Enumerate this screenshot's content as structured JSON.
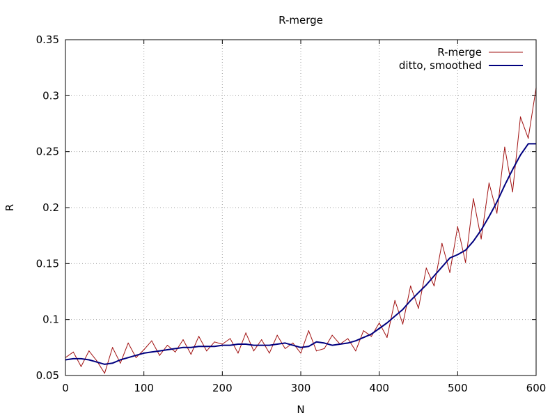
{
  "chart_data": {
    "type": "line",
    "title": "R-merge",
    "xlabel": "N",
    "ylabel": "R",
    "xlim": [
      0,
      600
    ],
    "ylim": [
      0.05,
      0.35
    ],
    "x_ticks": [
      "0",
      "100",
      "200",
      "300",
      "400",
      "500",
      "600"
    ],
    "y_ticks": [
      "0.05",
      "0.1",
      "0.15",
      "0.2",
      "0.25",
      "0.3",
      "0.35"
    ],
    "grid": true,
    "legend_position": "top-right",
    "series": [
      {
        "name": "R-merge",
        "color": "#a01010",
        "style": "thin-noisy",
        "x": [
          0,
          10,
          20,
          30,
          40,
          50,
          60,
          70,
          80,
          90,
          100,
          110,
          120,
          130,
          140,
          150,
          160,
          170,
          180,
          190,
          200,
          210,
          220,
          230,
          240,
          250,
          260,
          270,
          280,
          290,
          300,
          310,
          320,
          330,
          340,
          350,
          360,
          370,
          380,
          390,
          400,
          410,
          420,
          430,
          440,
          450,
          460,
          470,
          480,
          490,
          500,
          510,
          520,
          530,
          540,
          550,
          560,
          570,
          580,
          590,
          600
        ],
        "y": [
          0.066,
          0.071,
          0.058,
          0.072,
          0.063,
          0.052,
          0.075,
          0.061,
          0.079,
          0.066,
          0.073,
          0.081,
          0.068,
          0.077,
          0.071,
          0.082,
          0.069,
          0.085,
          0.072,
          0.08,
          0.078,
          0.083,
          0.07,
          0.088,
          0.072,
          0.082,
          0.07,
          0.086,
          0.074,
          0.079,
          0.07,
          0.09,
          0.072,
          0.074,
          0.086,
          0.078,
          0.083,
          0.072,
          0.09,
          0.085,
          0.097,
          0.084,
          0.117,
          0.096,
          0.13,
          0.11,
          0.146,
          0.13,
          0.168,
          0.142,
          0.183,
          0.151,
          0.208,
          0.172,
          0.222,
          0.195,
          0.254,
          0.214,
          0.281,
          0.262,
          0.307
        ]
      },
      {
        "name": "ditto, smoothed",
        "color": "#00007f",
        "style": "thick-smooth",
        "x": [
          0,
          10,
          20,
          30,
          40,
          50,
          60,
          70,
          80,
          90,
          100,
          110,
          120,
          130,
          140,
          150,
          160,
          170,
          180,
          190,
          200,
          210,
          220,
          230,
          240,
          250,
          260,
          270,
          280,
          290,
          300,
          310,
          320,
          330,
          340,
          350,
          360,
          370,
          380,
          390,
          400,
          410,
          420,
          430,
          440,
          450,
          460,
          470,
          480,
          490,
          500,
          510,
          520,
          530,
          540,
          550,
          560,
          570,
          580,
          590,
          600
        ],
        "y": [
          0.064,
          0.065,
          0.065,
          0.064,
          0.062,
          0.06,
          0.061,
          0.064,
          0.066,
          0.068,
          0.07,
          0.071,
          0.072,
          0.073,
          0.074,
          0.075,
          0.075,
          0.076,
          0.076,
          0.076,
          0.077,
          0.077,
          0.078,
          0.078,
          0.077,
          0.077,
          0.077,
          0.078,
          0.079,
          0.077,
          0.075,
          0.076,
          0.08,
          0.079,
          0.077,
          0.078,
          0.079,
          0.081,
          0.084,
          0.087,
          0.092,
          0.097,
          0.103,
          0.109,
          0.117,
          0.124,
          0.131,
          0.139,
          0.147,
          0.155,
          0.158,
          0.162,
          0.17,
          0.18,
          0.192,
          0.205,
          0.22,
          0.234,
          0.247,
          0.257,
          0.257
        ]
      }
    ]
  }
}
